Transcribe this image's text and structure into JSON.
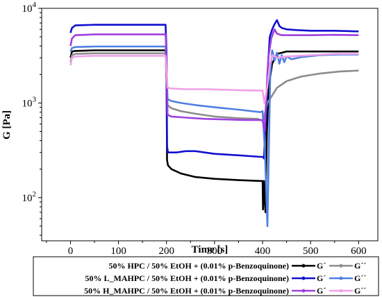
{
  "chart_data": {
    "type": "line",
    "xlabel": "Time [s]",
    "ylabel": "G [Pa]",
    "xlim": [
      -60,
      640
    ],
    "ylim": [
      35,
      10000
    ],
    "yscale": "log",
    "x_ticks": [
      0,
      100,
      200,
      300,
      400,
      500,
      600
    ],
    "y_ticks": [
      {
        "base": "10",
        "exp": "2",
        "value": 100
      },
      {
        "base": "10",
        "exp": "3",
        "value": 1000
      },
      {
        "base": "10",
        "exp": "4",
        "value": 10000
      }
    ],
    "grid": false,
    "legend_position": "bottom",
    "legend": [
      {
        "label": "50% HPC / 50% EtOH + (0.01% p-Benzoquinone)",
        "g1": "G´",
        "g2": "G´´",
        "c1": "#000000",
        "c2": "#8c8c8c"
      },
      {
        "label": "50% L_MAHPC / 50% EtOH + (0.01% p-Benzoquinone)",
        "g1": "G´",
        "g2": "G´´",
        "c1": "#1010d0",
        "c2": "#4f7fe0"
      },
      {
        "label": "50% H_MAHPC / 50% EtOH + (0.01% p-Benzoquinone)",
        "g1": "G´",
        "g2": "G´´",
        "c1": "#a040e0",
        "c2": "#f0a0e8"
      }
    ],
    "series": [
      {
        "color": "#000000",
        "points": [
          [
            0,
            3000
          ],
          [
            3,
            3500
          ],
          [
            10,
            3550
          ],
          [
            50,
            3600
          ],
          [
            100,
            3600
          ],
          [
            150,
            3600
          ],
          [
            198,
            3600
          ],
          [
            200,
            1800
          ],
          [
            201,
            250
          ],
          [
            203,
            220
          ],
          [
            210,
            200
          ],
          [
            230,
            180
          ],
          [
            260,
            165
          ],
          [
            300,
            158
          ],
          [
            350,
            153
          ],
          [
            395,
            150
          ],
          [
            400,
            150
          ],
          [
            401,
            75
          ],
          [
            403,
            150
          ],
          [
            406,
            70
          ],
          [
            409,
            500
          ],
          [
            413,
            1500
          ],
          [
            420,
            2600
          ],
          [
            430,
            3300
          ],
          [
            450,
            3500
          ],
          [
            500,
            3500
          ],
          [
            550,
            3500
          ],
          [
            600,
            3500
          ]
        ]
      },
      {
        "color": "#8c8c8c",
        "points": [
          [
            0,
            2700
          ],
          [
            3,
            3200
          ],
          [
            10,
            3300
          ],
          [
            50,
            3350
          ],
          [
            100,
            3350
          ],
          [
            150,
            3350
          ],
          [
            198,
            3350
          ],
          [
            200,
            1800
          ],
          [
            202,
            950
          ],
          [
            210,
            880
          ],
          [
            230,
            820
          ],
          [
            260,
            770
          ],
          [
            300,
            720
          ],
          [
            350,
            690
          ],
          [
            390,
            680
          ],
          [
            400,
            650
          ],
          [
            403,
            700
          ],
          [
            410,
            1000
          ],
          [
            420,
            1200
          ],
          [
            430,
            1450
          ],
          [
            450,
            1700
          ],
          [
            480,
            1900
          ],
          [
            520,
            2050
          ],
          [
            560,
            2150
          ],
          [
            600,
            2200
          ]
        ]
      },
      {
        "color": "#1010d0",
        "points": [
          [
            0,
            5500
          ],
          [
            3,
            6200
          ],
          [
            10,
            6600
          ],
          [
            50,
            6700
          ],
          [
            100,
            6700
          ],
          [
            150,
            6700
          ],
          [
            198,
            6700
          ],
          [
            200,
            3500
          ],
          [
            201,
            350
          ],
          [
            203,
            300
          ],
          [
            220,
            300
          ],
          [
            240,
            310
          ],
          [
            260,
            310
          ],
          [
            300,
            290
          ],
          [
            350,
            280
          ],
          [
            395,
            270
          ],
          [
            400,
            270
          ],
          [
            403,
            260
          ],
          [
            406,
            600
          ],
          [
            410,
            2000
          ],
          [
            415,
            5000
          ],
          [
            420,
            6000
          ],
          [
            425,
            6800
          ],
          [
            430,
            7500
          ],
          [
            435,
            6500
          ],
          [
            440,
            6200
          ],
          [
            450,
            6000
          ],
          [
            470,
            5900
          ],
          [
            500,
            5800
          ],
          [
            550,
            5800
          ],
          [
            600,
            5700
          ]
        ]
      },
      {
        "color": "#4f7fe0",
        "points": [
          [
            0,
            3500
          ],
          [
            3,
            3800
          ],
          [
            10,
            3900
          ],
          [
            50,
            3950
          ],
          [
            100,
            3950
          ],
          [
            150,
            3950
          ],
          [
            198,
            3950
          ],
          [
            200,
            2500
          ],
          [
            202,
            1100
          ],
          [
            210,
            1050
          ],
          [
            230,
            1000
          ],
          [
            260,
            950
          ],
          [
            300,
            900
          ],
          [
            350,
            850
          ],
          [
            395,
            800
          ],
          [
            400,
            820
          ],
          [
            405,
            300
          ],
          [
            410,
            50
          ],
          [
            413,
            300
          ],
          [
            416,
            2000
          ],
          [
            420,
            3600
          ],
          [
            425,
            2800
          ],
          [
            430,
            3400
          ],
          [
            435,
            2600
          ],
          [
            440,
            3200
          ],
          [
            445,
            2700
          ],
          [
            450,
            3100
          ],
          [
            460,
            2900
          ],
          [
            480,
            3050
          ],
          [
            520,
            3200
          ],
          [
            560,
            3250
          ],
          [
            600,
            3250
          ]
        ]
      },
      {
        "color": "#a040e0",
        "points": [
          [
            0,
            4000
          ],
          [
            3,
            4800
          ],
          [
            10,
            5200
          ],
          [
            50,
            5300
          ],
          [
            100,
            5300
          ],
          [
            150,
            5300
          ],
          [
            198,
            5300
          ],
          [
            200,
            3000
          ],
          [
            202,
            750
          ],
          [
            210,
            720
          ],
          [
            240,
            700
          ],
          [
            280,
            680
          ],
          [
            320,
            670
          ],
          [
            360,
            660
          ],
          [
            400,
            660
          ],
          [
            404,
            500
          ],
          [
            408,
            1200
          ],
          [
            412,
            3000
          ],
          [
            418,
            4800
          ],
          [
            425,
            6000
          ],
          [
            430,
            5400
          ],
          [
            440,
            5200
          ],
          [
            460,
            5200
          ],
          [
            500,
            5200
          ],
          [
            550,
            5250
          ],
          [
            600,
            5200
          ]
        ]
      },
      {
        "color": "#f0a0e8",
        "points": [
          [
            0,
            2500
          ],
          [
            3,
            3000
          ],
          [
            10,
            3100
          ],
          [
            50,
            3150
          ],
          [
            100,
            3150
          ],
          [
            150,
            3150
          ],
          [
            198,
            3150
          ],
          [
            200,
            2200
          ],
          [
            202,
            1450
          ],
          [
            210,
            1420
          ],
          [
            240,
            1400
          ],
          [
            280,
            1400
          ],
          [
            320,
            1380
          ],
          [
            360,
            1360
          ],
          [
            400,
            1350
          ],
          [
            404,
            1000
          ],
          [
            410,
            1500
          ],
          [
            415,
            2500
          ],
          [
            420,
            3200
          ],
          [
            430,
            3000
          ],
          [
            450,
            3100
          ],
          [
            500,
            3200
          ],
          [
            550,
            3300
          ],
          [
            600,
            3300
          ]
        ]
      }
    ]
  }
}
